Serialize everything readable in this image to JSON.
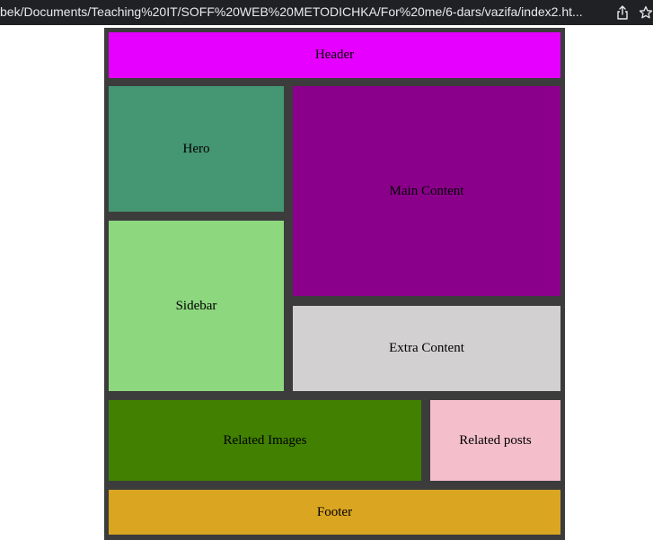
{
  "browser": {
    "url": "bek/Documents/Teaching%20IT/SOFF%20WEB%20METODICHKA/For%20me/6-dars/vazifa/index2.ht...",
    "icons": [
      "share-icon",
      "star-icon"
    ]
  },
  "page": {
    "background": "#3c3c3c",
    "blocks": {
      "header": {
        "label": "Header",
        "color": "#e600ff"
      },
      "hero": {
        "label": "Hero",
        "color": "#459673"
      },
      "main": {
        "label": "Main Content",
        "color": "#8b008b"
      },
      "sidebar": {
        "label": "Sidebar",
        "color": "#8dd77f"
      },
      "extra": {
        "label": "Extra Content",
        "color": "#d2d0d0"
      },
      "related_images": {
        "label": "Related Images",
        "color": "#418000"
      },
      "related_posts": {
        "label": "Related posts",
        "color": "#f4bfcb"
      },
      "footer": {
        "label": "Footer",
        "color": "#daa520"
      }
    }
  }
}
